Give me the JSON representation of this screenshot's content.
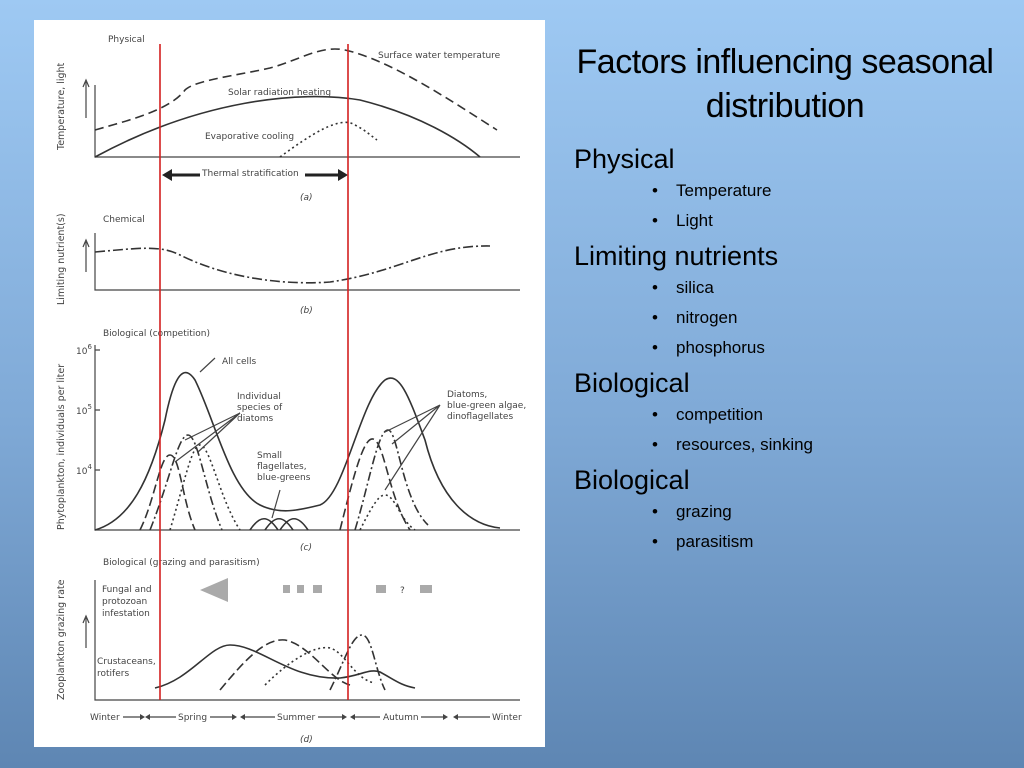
{
  "slide": {
    "title": "Factors influencing seasonal distribution",
    "sections": [
      {
        "heading": "Physical",
        "bullets": [
          "Temperature",
          "Light"
        ]
      },
      {
        "heading": "Limiting nutrients",
        "bullets": [
          "silica",
          "nitrogen",
          "phosphorus"
        ]
      },
      {
        "heading": "Biological",
        "bullets": [
          "competition",
          "resources, sinking"
        ]
      },
      {
        "heading": "Biological",
        "bullets": [
          "grazing",
          "parasitism"
        ]
      }
    ]
  },
  "figure": {
    "panel_a": {
      "title": "Physical",
      "y_label": "Temperature, light",
      "surface": "Surface water temperature",
      "solar": "Solar radiation heating",
      "evap": "Evaporative cooling",
      "strat": "Thermal stratification",
      "tag": "(a)"
    },
    "panel_b": {
      "title": "Chemical",
      "y_label": "Limiting nutrient(s)",
      "tag": "(b)"
    },
    "panel_c": {
      "title": "Biological (competition)",
      "y_label": "Phytoplankton, individuals per liter",
      "yticks": [
        {
          "base": "10",
          "exp": "6"
        },
        {
          "base": "10",
          "exp": "5"
        },
        {
          "base": "10",
          "exp": "4"
        }
      ],
      "all_cells": "All cells",
      "species": [
        "Individual",
        "species of",
        "diatoms"
      ],
      "small": [
        "Small",
        "flagellates,",
        "blue-greens"
      ],
      "diatoms": [
        "Diatoms,",
        "blue-green algae,",
        "dinoflagellates"
      ],
      "tag": "(c)"
    },
    "panel_d": {
      "title": "Biological (grazing and parasitism)",
      "y_label": "Zooplankton grazing rate",
      "fungal": [
        "Fungal and",
        "protozoan",
        "infestation"
      ],
      "crust": [
        "Crustaceans,",
        "rotifers"
      ],
      "unknown": "?",
      "tag": "(d)"
    },
    "seasons": [
      "Winter",
      "Spring",
      "Summer",
      "Autumn",
      "Winter"
    ]
  }
}
